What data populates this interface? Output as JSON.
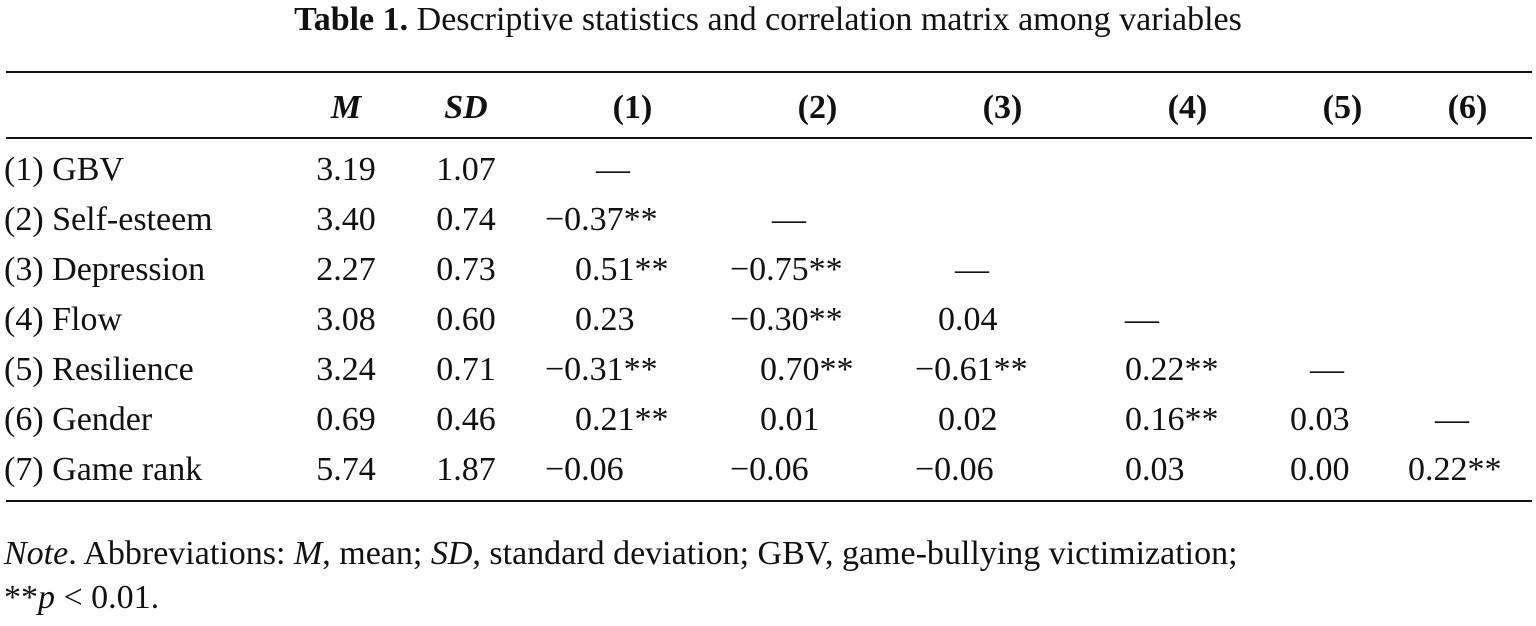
{
  "caption": {
    "label": "Table 1.",
    "text": "Descriptive statistics and correlation matrix among variables"
  },
  "table": {
    "headers": [
      "",
      "M",
      "SD",
      "(1)",
      "(2)",
      "(3)",
      "(4)",
      "(5)",
      "(6)"
    ],
    "rows": [
      {
        "variable": "(1) GBV",
        "m": "3.19",
        "sd": "1.07",
        "c1": "—",
        "c2": "",
        "c3": "",
        "c4": "",
        "c5": "",
        "c6": ""
      },
      {
        "variable": "(2) Self-esteem",
        "m": "3.40",
        "sd": "0.74",
        "c1": "−0.37**",
        "c2": "—",
        "c3": "",
        "c4": "",
        "c5": "",
        "c6": ""
      },
      {
        "variable": "(3) Depression",
        "m": "2.27",
        "sd": "0.73",
        "c1": "0.51**",
        "c2": "−0.75**",
        "c3": "—",
        "c4": "",
        "c5": "",
        "c6": ""
      },
      {
        "variable": "(4) Flow",
        "m": "3.08",
        "sd": "0.60",
        "c1": "0.23",
        "c2": "−0.30**",
        "c3": "0.04",
        "c4": "—",
        "c5": "",
        "c6": ""
      },
      {
        "variable": "(5) Resilience",
        "m": "3.24",
        "sd": "0.71",
        "c1": "−0.31**",
        "c2": "0.70**",
        "c3": "−0.61**",
        "c4": "0.22**",
        "c5": "—",
        "c6": ""
      },
      {
        "variable": "(6) Gender",
        "m": "0.69",
        "sd": "0.46",
        "c1": "0.21**",
        "c2": "0.01",
        "c3": "0.02",
        "c4": "0.16**",
        "c5": "0.03",
        "c6": "—"
      },
      {
        "variable": "(7) Game rank",
        "m": "5.74",
        "sd": "1.87",
        "c1": "−0.06",
        "c2": "−0.06",
        "c3": "−0.06",
        "c4": "0.03",
        "c5": "0.00",
        "c6": "0.22**"
      }
    ]
  },
  "note": {
    "label": "Note",
    "t1": ". Abbreviations: ",
    "m_abbr": "M",
    "t2": ", mean; ",
    "sd_abbr": "SD",
    "t3": ", standard deviation; GBV, game-bullying victimization;",
    "t4": "**",
    "p": "p",
    "t5": " < 0.01."
  }
}
